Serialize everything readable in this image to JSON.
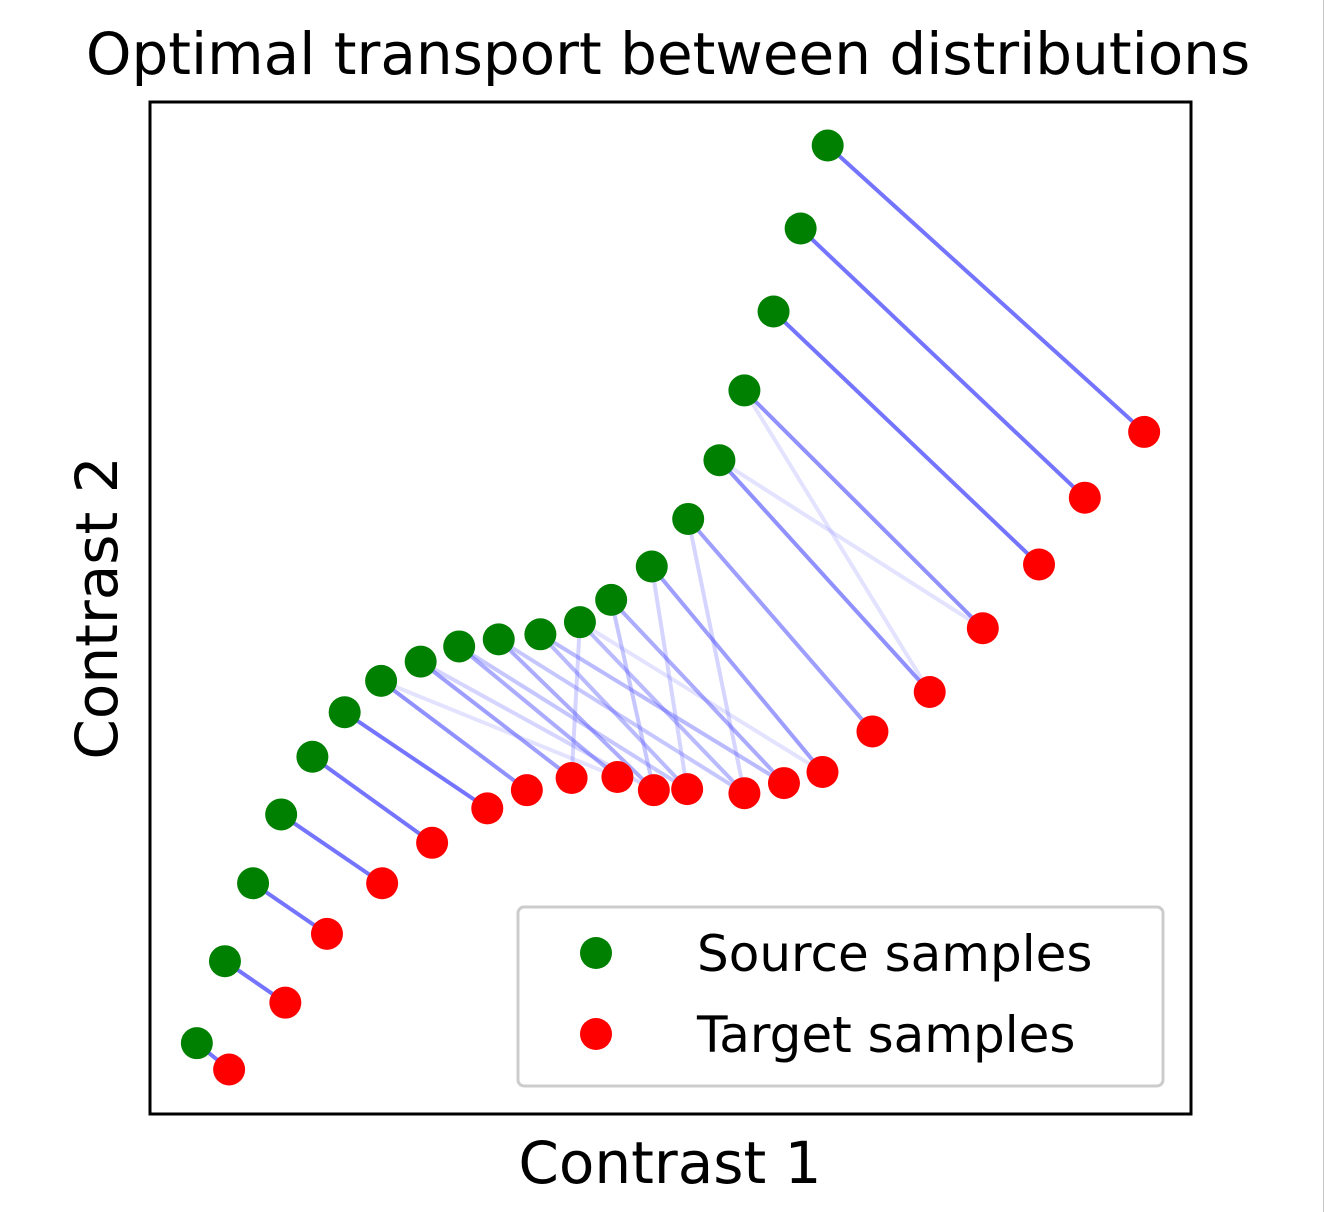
{
  "chart_data": {
    "type": "scatter",
    "title": "Optimal transport between distributions",
    "xlabel": "Contrast 1",
    "ylabel": "Contrast 2",
    "xlim": [
      0,
      1
    ],
    "ylim": [
      0,
      1
    ],
    "grid": false,
    "ticks": false,
    "legend": {
      "placement": "bottom-right",
      "entries": [
        "Source samples",
        "Target samples"
      ]
    },
    "colors": {
      "source": "#008000",
      "target": "#ff0000",
      "transport": "#4d4dff"
    },
    "series": [
      {
        "name": "Source samples",
        "x": [
          0.045,
          0.072,
          0.099,
          0.126,
          0.156,
          0.187,
          0.222,
          0.26,
          0.297,
          0.335,
          0.375,
          0.413,
          0.443,
          0.482,
          0.517,
          0.547,
          0.571,
          0.599,
          0.625,
          0.651
        ],
        "y": [
          0.07,
          0.151,
          0.228,
          0.296,
          0.353,
          0.397,
          0.428,
          0.447,
          0.462,
          0.469,
          0.474,
          0.486,
          0.508,
          0.541,
          0.588,
          0.646,
          0.715,
          0.793,
          0.875,
          0.957
        ]
      },
      {
        "name": "Target samples",
        "x": [
          0.076,
          0.13,
          0.17,
          0.223,
          0.271,
          0.324,
          0.362,
          0.405,
          0.449,
          0.484,
          0.516,
          0.571,
          0.609,
          0.646,
          0.694,
          0.749,
          0.8,
          0.854,
          0.898,
          0.955
        ],
        "y": [
          0.044,
          0.11,
          0.178,
          0.228,
          0.268,
          0.302,
          0.32,
          0.332,
          0.333,
          0.32,
          0.321,
          0.317,
          0.327,
          0.338,
          0.378,
          0.417,
          0.48,
          0.543,
          0.609,
          0.674
        ]
      }
    ],
    "transport": [
      {
        "s": 0,
        "t": 0,
        "w": 1.0
      },
      {
        "s": 1,
        "t": 1,
        "w": 1.0
      },
      {
        "s": 2,
        "t": 2,
        "w": 1.0
      },
      {
        "s": 3,
        "t": 3,
        "w": 1.0
      },
      {
        "s": 4,
        "t": 4,
        "w": 1.0
      },
      {
        "s": 5,
        "t": 5,
        "w": 1.0
      },
      {
        "s": 6,
        "t": 6,
        "w": 0.8
      },
      {
        "s": 6,
        "t": 8,
        "w": 0.2
      },
      {
        "s": 7,
        "t": 7,
        "w": 0.7
      },
      {
        "s": 7,
        "t": 9,
        "w": 0.3
      },
      {
        "s": 8,
        "t": 8,
        "w": 0.6
      },
      {
        "s": 8,
        "t": 10,
        "w": 0.4
      },
      {
        "s": 9,
        "t": 9,
        "w": 0.6
      },
      {
        "s": 9,
        "t": 11,
        "w": 0.4
      },
      {
        "s": 10,
        "t": 10,
        "w": 0.5
      },
      {
        "s": 10,
        "t": 12,
        "w": 0.5
      },
      {
        "s": 11,
        "t": 11,
        "w": 0.5
      },
      {
        "s": 11,
        "t": 7,
        "w": 0.3
      },
      {
        "s": 11,
        "t": 13,
        "w": 0.2
      },
      {
        "s": 12,
        "t": 12,
        "w": 0.6
      },
      {
        "s": 12,
        "t": 9,
        "w": 0.4
      },
      {
        "s": 13,
        "t": 13,
        "w": 0.7
      },
      {
        "s": 13,
        "t": 10,
        "w": 0.3
      },
      {
        "s": 14,
        "t": 14,
        "w": 0.7
      },
      {
        "s": 14,
        "t": 11,
        "w": 0.3
      },
      {
        "s": 15,
        "t": 15,
        "w": 0.8
      },
      {
        "s": 15,
        "t": 16,
        "w": 0.2
      },
      {
        "s": 16,
        "t": 15,
        "w": 0.2
      },
      {
        "s": 16,
        "t": 16,
        "w": 0.8
      },
      {
        "s": 17,
        "t": 17,
        "w": 1.0
      },
      {
        "s": 18,
        "t": 18,
        "w": 1.0
      },
      {
        "s": 19,
        "t": 19,
        "w": 1.0
      }
    ]
  }
}
